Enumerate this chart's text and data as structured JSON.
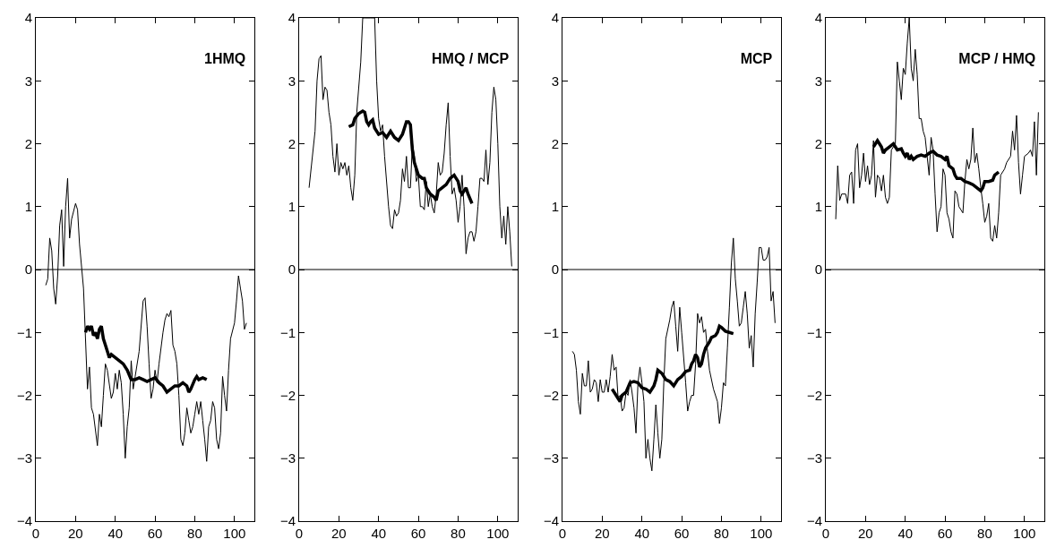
{
  "chart_data": [
    {
      "type": "line",
      "title": "1HMQ",
      "xlim": [
        0,
        110
      ],
      "xticks": [
        0,
        20,
        40,
        60,
        80,
        100
      ],
      "ylim": [
        -4,
        4
      ],
      "yticks": [
        -4,
        -3,
        -2,
        -1,
        0,
        1,
        2,
        3,
        4
      ],
      "grid": false,
      "marker": "none",
      "line_style": "solid",
      "ref_lines": [
        {
          "axis": "y",
          "value": 0,
          "color": "#000000"
        }
      ],
      "series": [
        {
          "color": "#000000",
          "x": [
            5,
            6,
            7,
            8,
            9,
            10,
            11,
            12,
            13,
            14,
            15,
            16,
            17,
            18,
            20,
            21,
            22,
            24,
            26,
            27,
            28,
            29,
            31,
            32,
            33,
            34,
            35,
            36,
            38,
            39,
            40,
            41,
            42,
            43,
            44,
            45,
            46,
            47,
            48,
            49,
            50,
            52,
            54,
            55,
            56,
            57,
            58,
            59,
            60,
            61,
            62,
            64,
            65,
            66,
            67,
            68,
            69,
            70,
            71,
            72,
            73,
            74,
            75,
            76,
            77,
            78,
            79,
            80,
            81,
            82,
            83,
            84,
            85,
            86,
            87,
            88,
            89,
            90,
            91,
            92,
            93,
            94,
            95,
            96,
            97,
            98,
            100,
            101,
            102,
            103,
            104,
            105,
            106
          ],
          "values": [
            -0.25,
            -0.15,
            0.5,
            0.3,
            -0.3,
            -0.55,
            -0.1,
            0.7,
            0.95,
            0.05,
            1.0,
            1.45,
            0.5,
            0.8,
            1.05,
            0.95,
            0.4,
            -0.3,
            -1.9,
            -1.55,
            -2.2,
            -2.3,
            -2.8,
            -2.3,
            -2.5,
            -2.0,
            -1.5,
            -1.6,
            -2.05,
            -1.95,
            -1.65,
            -1.9,
            -1.6,
            -1.8,
            -2.3,
            -3.0,
            -2.5,
            -2.2,
            -1.45,
            -1.9,
            -1.7,
            -1.3,
            -0.5,
            -0.45,
            -0.9,
            -1.5,
            -2.05,
            -1.9,
            -1.6,
            -1.8,
            -1.5,
            -1.0,
            -0.8,
            -0.7,
            -0.75,
            -0.65,
            -1.2,
            -1.3,
            -1.5,
            -2.0,
            -2.7,
            -2.8,
            -2.6,
            -2.2,
            -2.4,
            -2.6,
            -2.5,
            -2.3,
            -2.1,
            -2.3,
            -2.1,
            -2.4,
            -2.7,
            -3.05,
            -2.5,
            -2.4,
            -2.1,
            -2.2,
            -2.7,
            -2.85,
            -2.6,
            -1.7,
            -2.0,
            -2.25,
            -1.6,
            -1.1,
            -0.85,
            -0.5,
            -0.1,
            -0.3,
            -0.5,
            -0.95,
            -0.85
          ]
        },
        {
          "color": "#000000",
          "x": [
            25,
            26,
            27,
            28,
            29,
            30,
            31,
            32,
            33,
            34,
            35,
            36,
            37,
            38,
            40,
            42,
            44,
            46,
            48,
            50,
            52,
            54,
            56,
            58,
            60,
            62,
            64,
            66,
            68,
            70,
            72,
            74,
            76,
            77,
            78,
            80,
            81,
            82,
            84,
            86
          ],
          "values": [
            -1.0,
            -0.9,
            -0.95,
            -0.9,
            -1.05,
            -1.0,
            -1.1,
            -0.95,
            -0.9,
            -1.1,
            -1.2,
            -1.3,
            -1.4,
            -1.35,
            -1.4,
            -1.45,
            -1.5,
            -1.6,
            -1.75,
            -1.75,
            -1.72,
            -1.75,
            -1.78,
            -1.75,
            -1.72,
            -1.8,
            -1.85,
            -1.95,
            -1.9,
            -1.85,
            -1.85,
            -1.8,
            -1.85,
            -1.95,
            -1.9,
            -1.75,
            -1.7,
            -1.75,
            -1.72,
            -1.75
          ]
        }
      ]
    },
    {
      "type": "line",
      "title": "HMQ / MCP",
      "xlim": [
        0,
        110
      ],
      "xticks": [
        0,
        20,
        40,
        60,
        80,
        100
      ],
      "ylim": [
        -4,
        4
      ],
      "yticks": [
        -4,
        -3,
        -2,
        -1,
        0,
        1,
        2,
        3,
        4
      ],
      "grid": false,
      "marker": "none",
      "line_style": "solid",
      "ref_lines": [
        {
          "axis": "y",
          "value": 0,
          "color": "#000000"
        }
      ],
      "series": [
        {
          "color": "#000000",
          "x": [
            5,
            8,
            9,
            10,
            11,
            12,
            13,
            14,
            15,
            16,
            17,
            18,
            19,
            20,
            21,
            22,
            23,
            24,
            25,
            26,
            27,
            28,
            29,
            31,
            32,
            33,
            36,
            38,
            39,
            40,
            41,
            42,
            43,
            45,
            46,
            47,
            48,
            49,
            50,
            51,
            52,
            53,
            54,
            55,
            56,
            57,
            58,
            59,
            60,
            61,
            62,
            63,
            64,
            65,
            66,
            67,
            68,
            69,
            70,
            71,
            72,
            73,
            74,
            75,
            76,
            77,
            78,
            79,
            80,
            81,
            82,
            83,
            84,
            85,
            86,
            87,
            88,
            89,
            90,
            91,
            92,
            93,
            94,
            95,
            96,
            97,
            98,
            99,
            100,
            101,
            102,
            103,
            104,
            105,
            106,
            107
          ],
          "values": [
            1.3,
            2.2,
            3.0,
            3.35,
            3.4,
            2.7,
            2.9,
            2.85,
            2.5,
            2.3,
            1.8,
            1.55,
            2.0,
            1.5,
            1.7,
            1.6,
            1.7,
            1.5,
            1.65,
            1.3,
            1.1,
            1.5,
            2.5,
            3.3,
            4.0,
            4.0,
            4.0,
            4.0,
            3.0,
            2.4,
            2.2,
            2.3,
            1.8,
            1.0,
            0.7,
            0.65,
            0.95,
            0.85,
            0.9,
            1.1,
            1.6,
            1.4,
            1.8,
            1.3,
            1.3,
            2.0,
            1.8,
            1.4,
            1.5,
            1.0,
            1.0,
            0.95,
            1.4,
            1.0,
            1.2,
            1.0,
            0.9,
            1.2,
            1.7,
            1.5,
            1.55,
            1.85,
            2.3,
            2.65,
            1.8,
            1.2,
            1.3,
            1.1,
            0.75,
            1.0,
            1.5,
            1.0,
            0.25,
            0.5,
            0.6,
            0.6,
            0.45,
            0.6,
            1.0,
            1.45,
            1.45,
            1.4,
            1.9,
            1.35,
            1.7,
            2.5,
            2.9,
            2.7,
            2.0,
            1.0,
            0.5,
            0.85,
            0.4,
            1.0,
            0.6,
            0.05
          ]
        },
        {
          "color": "#000000",
          "x": [
            25,
            27,
            28,
            30,
            32,
            33,
            34,
            35,
            36,
            37,
            38,
            40,
            42,
            44,
            46,
            48,
            50,
            52,
            54,
            55,
            56,
            57,
            58,
            60,
            62,
            63,
            64,
            66,
            68,
            69,
            70,
            72,
            74,
            76,
            78,
            80,
            81,
            82,
            84,
            85,
            87
          ],
          "values": [
            2.27,
            2.3,
            2.4,
            2.48,
            2.52,
            2.5,
            2.35,
            2.3,
            2.35,
            2.38,
            2.25,
            2.15,
            2.18,
            2.1,
            2.2,
            2.1,
            2.05,
            2.15,
            2.35,
            2.35,
            2.3,
            1.9,
            1.7,
            1.5,
            1.45,
            1.45,
            1.3,
            1.2,
            1.15,
            1.1,
            1.25,
            1.3,
            1.35,
            1.45,
            1.5,
            1.4,
            1.25,
            1.2,
            1.3,
            1.2,
            1.05
          ]
        }
      ]
    },
    {
      "type": "line",
      "title": "MCP",
      "xlim": [
        0,
        110
      ],
      "xticks": [
        0,
        20,
        40,
        60,
        80,
        100
      ],
      "ylim": [
        -4,
        4
      ],
      "yticks": [
        -4,
        -3,
        -2,
        -1,
        0,
        1,
        2,
        3,
        4
      ],
      "grid": false,
      "marker": "none",
      "line_style": "solid",
      "ref_lines": [
        {
          "axis": "y",
          "value": 0,
          "color": "#000000"
        }
      ],
      "series": [
        {
          "color": "#000000",
          "x": [
            5,
            6,
            7,
            8,
            9,
            10,
            11,
            12,
            13,
            14,
            15,
            16,
            17,
            18,
            19,
            20,
            21,
            22,
            23,
            24,
            25,
            26,
            27,
            28,
            29,
            30,
            31,
            32,
            33,
            34,
            35,
            36,
            37,
            38,
            39,
            40,
            41,
            42,
            43,
            44,
            45,
            46,
            47,
            48,
            49,
            50,
            51,
            52,
            54,
            55,
            56,
            57,
            58,
            59,
            60,
            62,
            63,
            64,
            65,
            66,
            67,
            68,
            69,
            70,
            71,
            72,
            73,
            74,
            76,
            78,
            79,
            80,
            81,
            82,
            83,
            84,
            85,
            86,
            87,
            88,
            89,
            90,
            91,
            92,
            93,
            94,
            95,
            96,
            97,
            98,
            99,
            100,
            101,
            102,
            103,
            104,
            105,
            106,
            107
          ],
          "values": [
            -1.3,
            -1.35,
            -1.6,
            -2.1,
            -2.3,
            -1.65,
            -1.85,
            -1.85,
            -1.45,
            -1.95,
            -1.9,
            -1.75,
            -1.8,
            -2.1,
            -1.75,
            -1.95,
            -1.95,
            -1.75,
            -1.95,
            -1.7,
            -1.35,
            -1.6,
            -1.55,
            -2.05,
            -2.0,
            -2.25,
            -2.2,
            -1.95,
            -2.0,
            -1.75,
            -1.95,
            -2.2,
            -2.6,
            -1.8,
            -1.55,
            -1.8,
            -2.1,
            -3.0,
            -2.7,
            -3.0,
            -3.2,
            -2.7,
            -2.15,
            -2.6,
            -3.0,
            -2.7,
            -1.8,
            -1.1,
            -0.8,
            -0.6,
            -0.5,
            -0.9,
            -1.3,
            -0.6,
            -1.0,
            -1.8,
            -2.25,
            -2.1,
            -2.0,
            -2.0,
            -1.5,
            -0.7,
            -0.85,
            -0.75,
            -1.0,
            -0.95,
            -1.3,
            -1.6,
            -1.9,
            -2.1,
            -2.45,
            -2.2,
            -1.8,
            -1.85,
            -1.25,
            -0.6,
            0.1,
            0.5,
            -0.15,
            -0.5,
            -0.9,
            -0.85,
            -0.6,
            -0.35,
            -0.7,
            -1.25,
            -1.05,
            -1.55,
            -0.7,
            -0.2,
            0.35,
            0.35,
            0.15,
            0.15,
            0.2,
            0.35,
            -0.5,
            -0.35,
            -0.85
          ]
        },
        {
          "color": "#000000",
          "x": [
            25,
            26,
            28,
            29,
            30,
            32,
            34,
            36,
            38,
            40,
            42,
            44,
            46,
            47,
            48,
            50,
            52,
            54,
            56,
            58,
            60,
            62,
            64,
            65,
            66,
            67,
            68,
            69,
            70,
            71,
            72,
            74,
            75,
            77,
            78,
            79,
            80,
            82,
            84,
            86
          ],
          "values": [
            -1.9,
            -1.95,
            -2.05,
            -2.1,
            -2.0,
            -1.95,
            -1.8,
            -1.78,
            -1.8,
            -1.88,
            -1.9,
            -1.95,
            -1.85,
            -1.75,
            -1.6,
            -1.65,
            -1.75,
            -1.78,
            -1.85,
            -1.75,
            -1.7,
            -1.62,
            -1.6,
            -1.5,
            -1.45,
            -1.35,
            -1.4,
            -1.55,
            -1.5,
            -1.35,
            -1.25,
            -1.15,
            -1.08,
            -1.05,
            -1.0,
            -0.9,
            -0.92,
            -0.98,
            -1.0,
            -1.02
          ]
        }
      ]
    },
    {
      "type": "line",
      "title": "MCP / HMQ",
      "xlim": [
        0,
        110
      ],
      "xticks": [
        0,
        20,
        40,
        60,
        80,
        100
      ],
      "ylim": [
        -4,
        4
      ],
      "yticks": [
        -4,
        -3,
        -2,
        -1,
        0,
        1,
        2,
        3,
        4
      ],
      "grid": false,
      "marker": "none",
      "line_style": "solid",
      "ref_lines": [
        {
          "axis": "y",
          "value": 0,
          "color": "#000000"
        }
      ],
      "series": [
        {
          "color": "#000000",
          "x": [
            5,
            6,
            7,
            8,
            10,
            11,
            12,
            13,
            14,
            15,
            16,
            17,
            18,
            19,
            20,
            21,
            22,
            23,
            24,
            25,
            26,
            27,
            28,
            29,
            30,
            31,
            32,
            33,
            35,
            36,
            37,
            38,
            39,
            40,
            41,
            42,
            43,
            44,
            45,
            46,
            47,
            48,
            49,
            50,
            51,
            52,
            53,
            54,
            55,
            56,
            57,
            58,
            59,
            60,
            61,
            62,
            63,
            64,
            65,
            66,
            67,
            68,
            69,
            70,
            71,
            72,
            73,
            74,
            75,
            76,
            77,
            78,
            79,
            80,
            81,
            82,
            83,
            84,
            85,
            86,
            87,
            88,
            90,
            91,
            93,
            94,
            95,
            96,
            97,
            98,
            99,
            100,
            102,
            103,
            104,
            105,
            106,
            107
          ],
          "values": [
            0.8,
            1.65,
            1.1,
            1.2,
            1.2,
            1.05,
            1.5,
            1.55,
            1.05,
            1.9,
            2.0,
            1.3,
            1.5,
            1.85,
            1.4,
            1.65,
            1.35,
            1.5,
            2.05,
            1.15,
            1.5,
            1.45,
            1.25,
            1.5,
            1.15,
            1.05,
            1.15,
            1.9,
            2.0,
            3.3,
            3.0,
            2.7,
            3.2,
            3.1,
            3.6,
            4.0,
            3.2,
            3.0,
            3.5,
            3.1,
            2.4,
            2.4,
            2.2,
            2.1,
            1.8,
            1.5,
            2.1,
            1.9,
            1.2,
            0.6,
            0.9,
            1.0,
            1.6,
            1.5,
            0.9,
            0.8,
            0.6,
            0.5,
            1.25,
            1.2,
            1.0,
            0.95,
            0.9,
            1.4,
            1.75,
            1.6,
            1.75,
            2.25,
            1.7,
            1.85,
            1.6,
            1.3,
            1.05,
            0.75,
            0.85,
            1.05,
            0.5,
            0.45,
            0.7,
            0.5,
            0.9,
            1.5,
            1.6,
            1.7,
            1.8,
            2.2,
            1.9,
            2.45,
            1.7,
            1.2,
            1.5,
            1.8,
            1.85,
            1.9,
            1.8,
            2.35,
            1.5,
            2.5
          ]
        },
        {
          "color": "#000000",
          "x": [
            24,
            25,
            26,
            27,
            28,
            29,
            30,
            32,
            34,
            35,
            36,
            38,
            39,
            40,
            41,
            42,
            43,
            44,
            46,
            48,
            50,
            52,
            54,
            56,
            58,
            60,
            61,
            62,
            64,
            65,
            66,
            68,
            70,
            72,
            74,
            76,
            78,
            79,
            80,
            82,
            84,
            85,
            87
          ],
          "values": [
            1.95,
            2.0,
            2.05,
            2.0,
            1.95,
            1.85,
            1.9,
            1.95,
            2.0,
            1.95,
            1.9,
            1.92,
            1.85,
            1.8,
            1.85,
            1.75,
            1.8,
            1.75,
            1.8,
            1.82,
            1.8,
            1.85,
            1.88,
            1.82,
            1.8,
            1.75,
            1.8,
            1.65,
            1.6,
            1.5,
            1.45,
            1.45,
            1.4,
            1.38,
            1.35,
            1.3,
            1.25,
            1.3,
            1.4,
            1.4,
            1.42,
            1.5,
            1.55
          ]
        }
      ]
    }
  ]
}
